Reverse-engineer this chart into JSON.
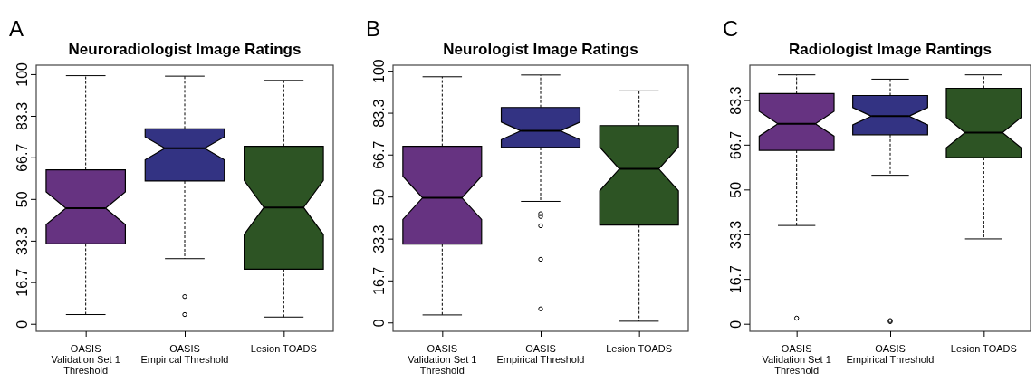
{
  "chart_data": [
    {
      "type": "box",
      "title": "Neuroradiologist Image Ratings",
      "annotations": [
        "A"
      ],
      "categories": [
        "OASIS\nValidation Set 1\nThreshold",
        "OASIS\nEmpirical Threshold",
        "Lesion TOADS"
      ],
      "colors": [
        "#663381",
        "#333383",
        "#2d5424"
      ],
      "ylim": [
        -3,
        103.6
      ],
      "yticks": [
        0,
        16.7,
        33.3,
        50,
        66.7,
        83.3,
        100
      ],
      "grid": false,
      "boxes": [
        {
          "low": 3.7,
          "q1": 32.0,
          "median": 46.3,
          "q3": 61.7,
          "high": 99.4
        },
        {
          "low": 26.1,
          "q1": 57.2,
          "median": 70.3,
          "q3": 78.1,
          "high": 99.2,
          "outliers": [
            10.9,
            3.7
          ]
        },
        {
          "low": 2.7,
          "q1": 21.9,
          "median": 46.6,
          "q3": 71.1,
          "high": 97.5
        }
      ]
    },
    {
      "type": "box",
      "title": "Neurologist Image Ratings",
      "annotations": [
        "B"
      ],
      "categories": [
        "OASIS\nValidation Set 1\nThreshold",
        "OASIS\nEmpirical Threshold",
        "Lesion TOADS"
      ],
      "colors": [
        "#663381",
        "#333383",
        "#2d5424"
      ],
      "ylim": [
        -3.5,
        102.2
      ],
      "yticks": [
        0,
        16.7,
        33.3,
        50,
        66.7,
        83.3,
        100
      ],
      "grid": false,
      "boxes": [
        {
          "low": 3.0,
          "q1": 31.1,
          "median": 49.5,
          "q3": 70.0,
          "high": 97.6
        },
        {
          "low": 48.1,
          "q1": 69.5,
          "median": 76.1,
          "q3": 85.4,
          "high": 98.3,
          "outliers": [
            43.2,
            42.1,
            38.4,
            25.1,
            5.4
          ]
        },
        {
          "low": 0.5,
          "q1": 38.7,
          "median": 61.0,
          "q3": 78.2,
          "high": 92.0
        }
      ]
    },
    {
      "type": "box",
      "title": "Radiologist Image Rantings",
      "annotations": [
        "C"
      ],
      "categories": [
        "OASIS\nValidation Set 1\nThreshold",
        "OASIS\nEmpirical Threshold",
        "Lesion TOADS"
      ],
      "colors": [
        "#663381",
        "#333383",
        "#2d5424"
      ],
      "ylim": [
        -2.8,
        96.3
      ],
      "yticks": [
        0,
        16.7,
        33.3,
        50,
        66.7,
        83.3
      ],
      "grid": false,
      "boxes": [
        {
          "low": 36.6,
          "q1": 64.6,
          "median": 74.5,
          "q3": 85.7,
          "high": 92.7,
          "outliers": [
            2.1
          ]
        },
        {
          "low": 55.3,
          "q1": 70.4,
          "median": 77.3,
          "q3": 85.0,
          "high": 91.1,
          "outliers": [
            1.2,
            0.8
          ]
        },
        {
          "low": 31.6,
          "q1": 61.9,
          "median": 71.2,
          "q3": 87.7,
          "high": 92.7
        }
      ]
    }
  ]
}
